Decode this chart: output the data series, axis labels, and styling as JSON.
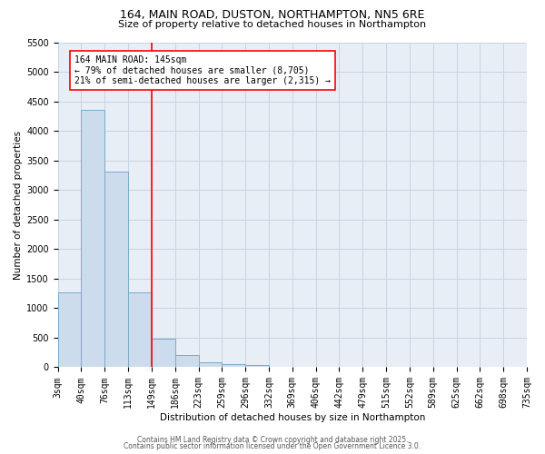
{
  "title": "164, MAIN ROAD, DUSTON, NORTHAMPTON, NN5 6RE",
  "subtitle": "Size of property relative to detached houses in Northampton",
  "xlabel": "Distribution of detached houses by size in Northampton",
  "ylabel": "Number of detached properties",
  "bar_color": "#ccdcec",
  "bar_edge_color": "#7aaaca",
  "grid_color": "#c8d4e0",
  "background_color": "#e8eef5",
  "bin_labels": [
    "3sqm",
    "40sqm",
    "76sqm",
    "113sqm",
    "149sqm",
    "186sqm",
    "223sqm",
    "259sqm",
    "296sqm",
    "332sqm",
    "369sqm",
    "406sqm",
    "442sqm",
    "479sqm",
    "515sqm",
    "552sqm",
    "589sqm",
    "625sqm",
    "662sqm",
    "698sqm",
    "735sqm"
  ],
  "bar_values": [
    1270,
    4350,
    3310,
    1270,
    490,
    200,
    90,
    55,
    45,
    0,
    0,
    0,
    0,
    0,
    0,
    0,
    0,
    0,
    0,
    0
  ],
  "ylim": [
    0,
    5500
  ],
  "yticks": [
    0,
    500,
    1000,
    1500,
    2000,
    2500,
    3000,
    3500,
    4000,
    4500,
    5000,
    5500
  ],
  "annotation_text": "164 MAIN ROAD: 145sqm\n← 79% of detached houses are smaller (8,705)\n21% of semi-detached houses are larger (2,315) →",
  "vline_bin": 4,
  "footer_line1": "Contains HM Land Registry data © Crown copyright and database right 2025.",
  "footer_line2": "Contains public sector information licensed under the Open Government Licence 3.0.",
  "title_fontsize": 9,
  "subtitle_fontsize": 8,
  "axis_label_fontsize": 7.5,
  "tick_fontsize": 7,
  "annotation_fontsize": 7,
  "footer_fontsize": 5.5
}
